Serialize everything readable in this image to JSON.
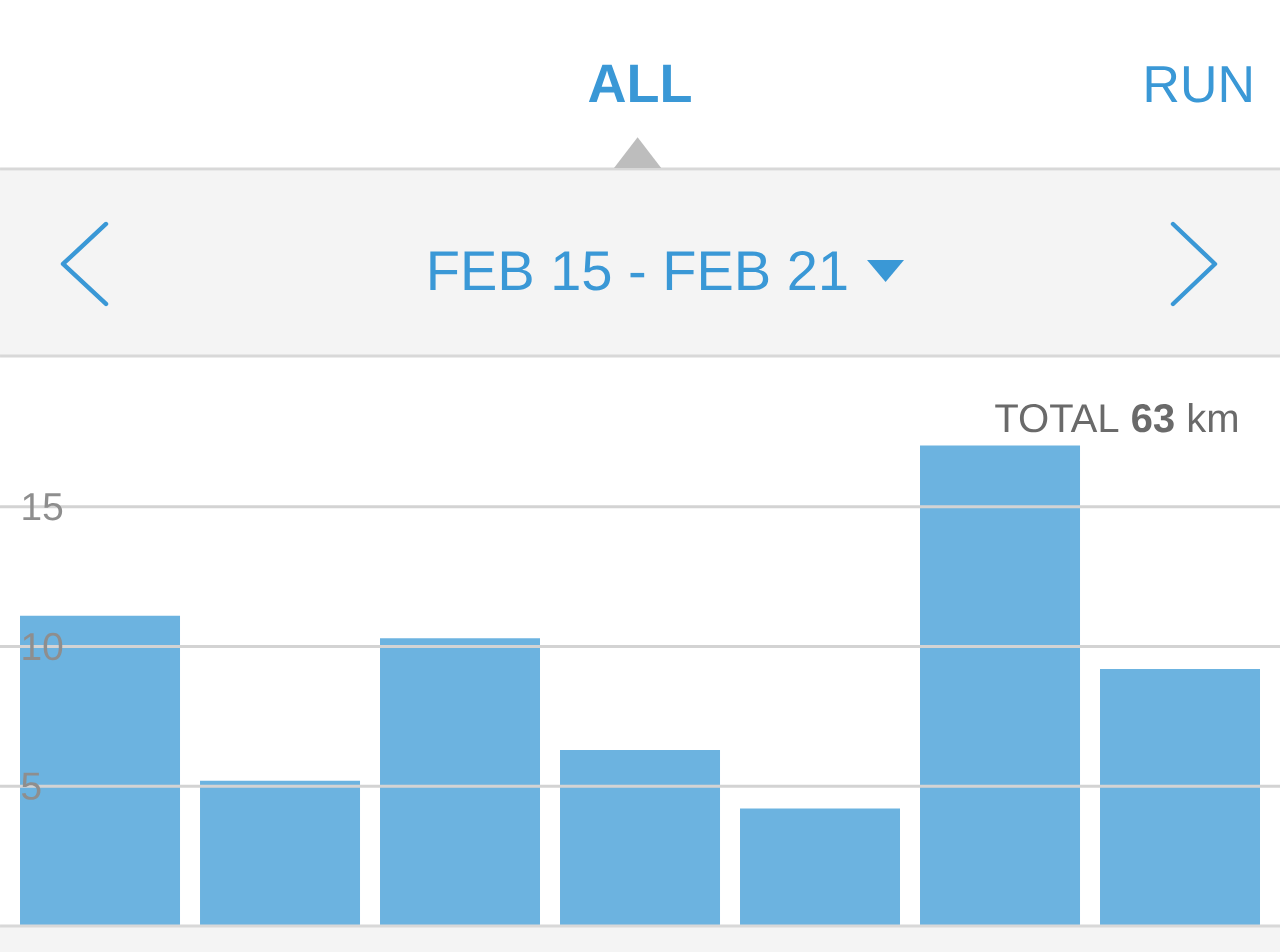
{
  "chart_data": {
    "type": "bar",
    "title": "FEB 15 - FEB 21",
    "categories": [
      null,
      null,
      null,
      null,
      null,
      null,
      null
    ],
    "values": [
      11.1,
      5.2,
      10.3,
      6.3,
      4.2,
      17.2,
      9.2
    ],
    "color": "#6cb3e0",
    "ylim": [
      0,
      20.4
    ],
    "yticks": [
      5,
      10,
      15
    ],
    "grid": "y",
    "tick_labels": "y",
    "annotations": [
      "ALL",
      "RUN",
      "TOTAL **63** km"
    ]
  }
}
